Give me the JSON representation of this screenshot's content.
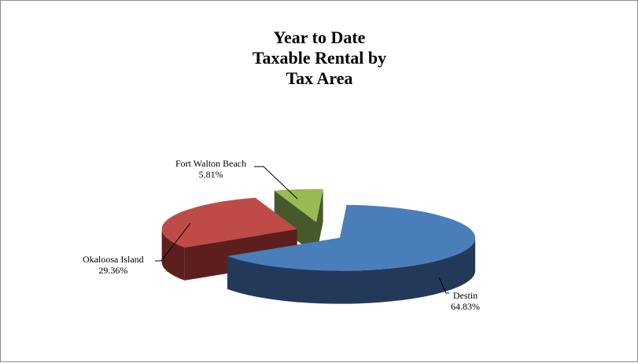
{
  "chart_data": {
    "type": "pie",
    "title_lines": [
      "Year to Date",
      "Taxable Rental by",
      "Tax Area"
    ],
    "slices": [
      {
        "name": "Destin",
        "value": 64.83,
        "label": "64.83%",
        "color": "#4a7ebb",
        "side_color": "#22395a"
      },
      {
        "name": "Okaloosa Island",
        "value": 29.36,
        "label": "29.36%",
        "color": "#be4b48",
        "side_color": "#5c1f1d"
      },
      {
        "name": "Fort Walton Beach",
        "value": 5.81,
        "label": "5.81%",
        "color": "#98b954",
        "side_color": "#46592a"
      }
    ],
    "style": "3d-exploded"
  }
}
